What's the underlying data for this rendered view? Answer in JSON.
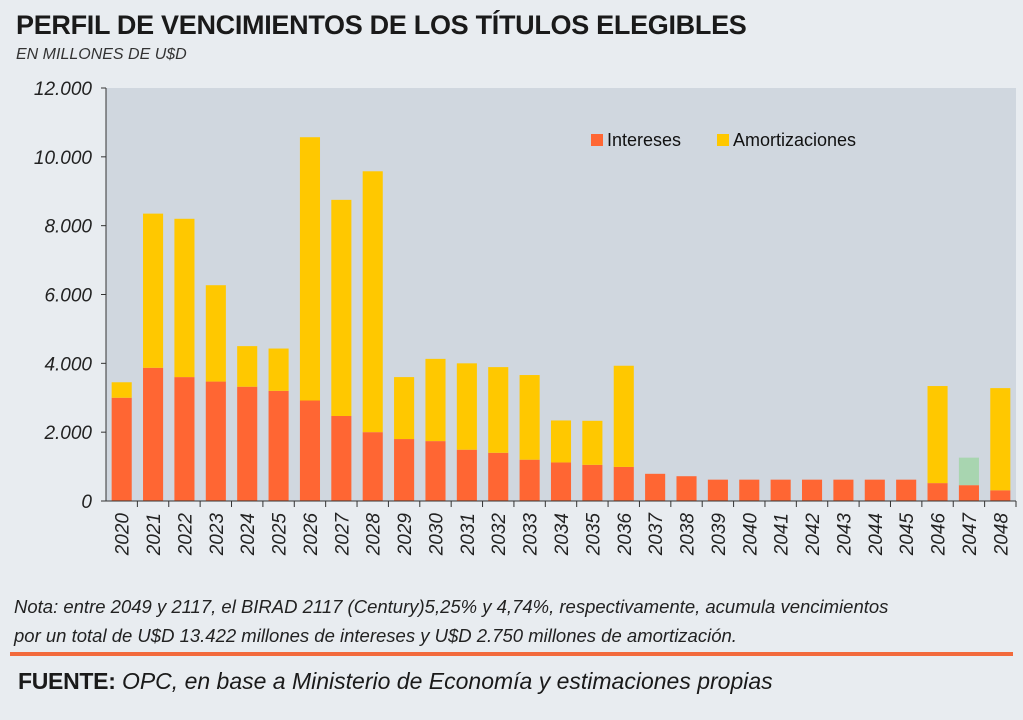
{
  "header": {
    "title": "PERFIL DE VENCIMIENTOS DE LOS TÍTULOS ELEGIBLES",
    "subtitle": "EN MILLONES DE U$D"
  },
  "note": {
    "line1": "Nota: entre 2049 y 2117, el BIRAD 2117 (Century)5,25% y 4,74%, respectivamente, acumula vencimientos",
    "line2": "por un total de U$D 13.422 millones de intereses y U$D 2.750 millones de amortización."
  },
  "source": {
    "label": "FUENTE:",
    "text": "OPC, en base a Ministerio de Economía y estimaciones propias"
  },
  "colors": {
    "intereses": "#ff6633",
    "amortizaciones": "#ffc800",
    "highlight_2047": "#a8d5b0",
    "plot_bg": "#d0d7df",
    "accent_rule": "#f26a3c"
  },
  "chart_data": {
    "type": "bar",
    "stacked": true,
    "categories": [
      "2020",
      "2021",
      "2022",
      "2023",
      "2024",
      "2025",
      "2026",
      "2027",
      "2028",
      "2029",
      "2030",
      "2031",
      "2032",
      "2033",
      "2034",
      "2035",
      "2036",
      "2037",
      "2038",
      "2039",
      "2040",
      "2041",
      "2042",
      "2043",
      "2044",
      "2045",
      "2046",
      "2047",
      "2048"
    ],
    "series": [
      {
        "name": "Intereses",
        "color": "#ff6633",
        "values": [
          3000,
          3870,
          3600,
          3470,
          3320,
          3200,
          2920,
          2470,
          2000,
          1800,
          1740,
          1490,
          1400,
          1200,
          1120,
          1050,
          990,
          790,
          720,
          620,
          620,
          620,
          620,
          620,
          620,
          620,
          520,
          460,
          310
        ]
      },
      {
        "name": "Amortizaciones",
        "color": "#ffc800",
        "values": [
          450,
          4480,
          4600,
          2800,
          1180,
          1230,
          7650,
          6280,
          7580,
          1800,
          2390,
          2510,
          2490,
          2460,
          1220,
          1280,
          2940,
          0,
          0,
          0,
          0,
          0,
          0,
          0,
          0,
          0,
          2820,
          800,
          2970
        ]
      }
    ],
    "ylim": [
      0,
      12000
    ],
    "yticks": [
      0,
      2000,
      4000,
      6000,
      8000,
      10000,
      12000
    ],
    "ytick_labels": [
      "0",
      "2.000",
      "4.000",
      "6.000",
      "8.000",
      "10.000",
      "12.000"
    ],
    "grid": false,
    "legend": "top-right",
    "legend_items": [
      {
        "label": "Intereses",
        "color": "#ff6633"
      },
      {
        "label": "Amortizaciones",
        "color": "#ffc800"
      }
    ],
    "xlabel": "",
    "ylabel": ""
  }
}
